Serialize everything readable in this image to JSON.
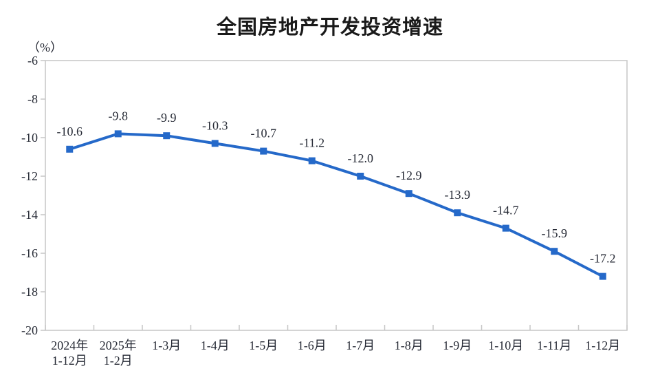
{
  "chart_data": {
    "type": "line",
    "title": "全国房地产开发投资增速",
    "unit_label": "（%）",
    "categories": [
      [
        "2024年",
        "1-12月"
      ],
      [
        "2025年",
        "1-2月"
      ],
      [
        "1-3月"
      ],
      [
        "1-4月"
      ],
      [
        "1-5月"
      ],
      [
        "1-6月"
      ],
      [
        "1-7月"
      ],
      [
        "1-8月"
      ],
      [
        "1-9月"
      ],
      [
        "1-10月"
      ],
      [
        "1-11月"
      ],
      [
        "1-12月"
      ]
    ],
    "values": [
      -10.6,
      -9.8,
      -9.9,
      -10.3,
      -10.7,
      -11.2,
      -12.0,
      -12.9,
      -13.9,
      -14.7,
      -15.9,
      -17.2
    ],
    "data_labels": [
      "-10.6",
      "-9.8",
      "-9.9",
      "-10.3",
      "-10.7",
      "-11.2",
      "-12.0",
      "-12.9",
      "-13.9",
      "-14.7",
      "-15.9",
      "-17.2"
    ],
    "y_axis": {
      "min": -20,
      "max": -6,
      "step": 2,
      "tick_labels": [
        "-6",
        "-8",
        "-10",
        "-12",
        "-14",
        "-16",
        "-18",
        "-20"
      ]
    },
    "style": {
      "line_color": "#2569c9",
      "marker": "square",
      "axis_color": "#c6c6c6",
      "label_color": "#262a35",
      "grid": "off",
      "legend": "none"
    }
  }
}
